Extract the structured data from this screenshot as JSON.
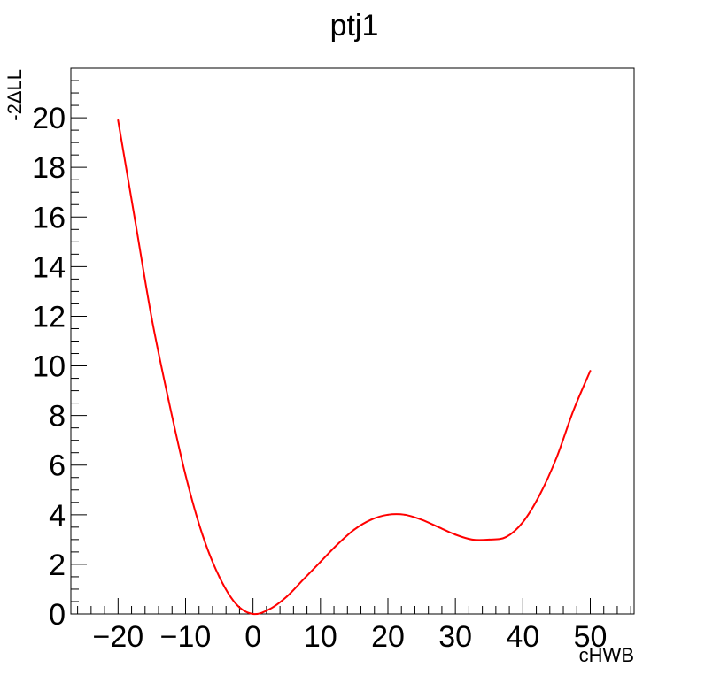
{
  "chart_data": {
    "type": "line",
    "title": "ptj1",
    "xlabel": "cHWB",
    "ylabel": "-2ΔLL",
    "xlim": [
      -27,
      56.5
    ],
    "ylim": [
      0,
      22
    ],
    "xticks": [
      -20,
      -10,
      0,
      10,
      20,
      30,
      40,
      50
    ],
    "xtick_labels": [
      "−20",
      "−10",
      "0",
      "10",
      "20",
      "30",
      "40",
      "50"
    ],
    "yticks": [
      0,
      2,
      4,
      6,
      8,
      10,
      12,
      14,
      16,
      18,
      20
    ],
    "ytick_labels": [
      "0",
      "2",
      "4",
      "6",
      "8",
      "10",
      "12",
      "14",
      "16",
      "18",
      "20"
    ],
    "grid": false,
    "series": [
      {
        "color": "#ff0000",
        "x": [
          -20,
          -17.5,
          -15,
          -12.5,
          -10,
          -7.5,
          -5,
          -2.5,
          0,
          2.5,
          5,
          7.5,
          10,
          12.5,
          15,
          17.5,
          20,
          22.5,
          25,
          27.5,
          30,
          32.5,
          35,
          37.5,
          40,
          42.5,
          45,
          47.5,
          50
        ],
        "y": [
          19.9,
          15.9,
          11.9,
          8.6,
          5.6,
          3.2,
          1.5,
          0.4,
          0.0,
          0.2,
          0.7,
          1.4,
          2.1,
          2.8,
          3.4,
          3.8,
          4.0,
          4.0,
          3.8,
          3.5,
          3.2,
          3.0,
          3.0,
          3.1,
          3.7,
          4.8,
          6.3,
          8.2,
          9.8
        ]
      }
    ]
  }
}
